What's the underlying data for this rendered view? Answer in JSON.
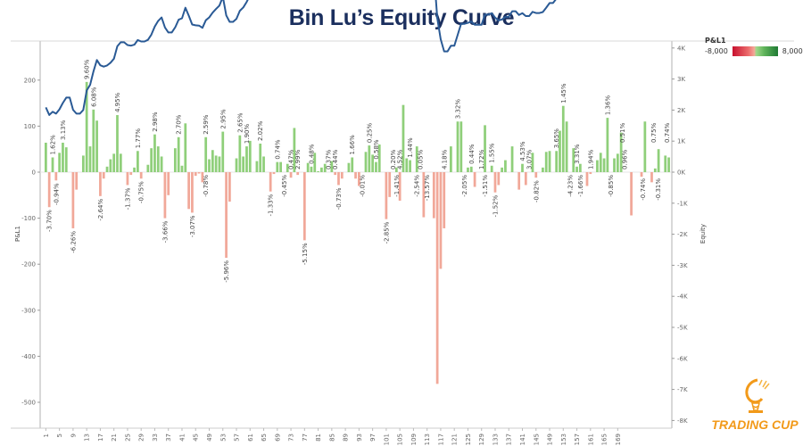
{
  "title": "Bin Lu’s Equity Curve",
  "legend": {
    "title": "P&L1",
    "min_label": "-8,000",
    "max_label": "8,000"
  },
  "logo": {
    "text": "TRADING CUP"
  },
  "colors": {
    "positive": "#8fcf7a",
    "negative": "#f1a899",
    "line": "#2a5a95",
    "title": "#1b2f5e",
    "axis": "#cccccc"
  },
  "chart_data": {
    "type": "bar+line",
    "title": "Bin Lu’s Equity Curve",
    "xlabel": "",
    "ylabel": "P&L1",
    "y2label": "Equity",
    "ylim": [
      -540,
      250
    ],
    "y2lim": [
      -8300,
      4300
    ],
    "yticks": [
      "200",
      "100",
      "0",
      "-100",
      "-200",
      "-300",
      "-400",
      "-500"
    ],
    "y2ticks": [
      "4K",
      "3K",
      "2K",
      "1K",
      "0K",
      "-1K",
      "-2K",
      "-3K",
      "-4K",
      "-5K",
      "-6K",
      "-7K",
      "-8K"
    ],
    "xticks": [
      "1",
      "5",
      "9",
      "13",
      "17",
      "21",
      "25",
      "29",
      "33",
      "37",
      "41",
      "45",
      "49",
      "53",
      "57",
      "61",
      "65",
      "69",
      "73",
      "77",
      "81",
      "85",
      "89",
      "93",
      "97",
      "101",
      "105",
      "109",
      "113",
      "117",
      "121",
      "125",
      "129",
      "133",
      "137",
      "141",
      "145",
      "149",
      "153",
      "157",
      "161",
      "165",
      "169"
    ],
    "equity_start": 1880,
    "pnl": [
      64,
      -76,
      32,
      -18,
      42,
      64,
      54,
      0,
      -122,
      -38,
      0,
      36,
      196,
      56,
      136,
      112,
      -52,
      -14,
      12,
      28,
      40,
      124,
      40,
      0,
      -28,
      -6,
      10,
      46,
      -14,
      0,
      16,
      52,
      82,
      56,
      34,
      -100,
      -50,
      0,
      52,
      76,
      14,
      106,
      -80,
      -88,
      -8,
      -3,
      -22,
      76,
      28,
      48,
      36,
      34,
      88,
      -186,
      -64,
      0,
      30,
      80,
      34,
      56,
      68,
      0,
      24,
      62,
      34,
      0,
      -42,
      -4,
      22,
      22,
      0,
      18,
      -12,
      96,
      -6,
      0,
      -148,
      20,
      12,
      42,
      2,
      10,
      18,
      0,
      24,
      -6,
      -28,
      -14,
      0,
      20,
      32,
      -14,
      -30,
      0,
      44,
      58,
      38,
      22,
      60,
      0,
      -102,
      -54,
      0,
      10,
      -62,
      146,
      30,
      26,
      0,
      56,
      0,
      -98,
      0,
      0,
      -100,
      -460,
      -210,
      -122,
      0,
      56,
      0,
      110,
      110,
      0,
      10,
      12,
      -32,
      0,
      0,
      102,
      0,
      14,
      -44,
      -28,
      10,
      26,
      0,
      56,
      0,
      -38,
      18,
      -28,
      0,
      42,
      -12,
      0,
      10,
      44,
      46,
      0,
      46,
      90,
      144,
      110,
      0,
      52,
      12,
      18,
      0,
      -30,
      -4,
      0,
      26,
      42,
      30,
      118,
      0,
      30,
      40,
      86,
      0,
      0,
      -94,
      0,
      0,
      -10,
      110,
      0,
      -22,
      8,
      50,
      0,
      36,
      32
    ],
    "labels": [
      {
        "i": 1,
        "text": "-3.70%"
      },
      {
        "i": 2,
        "text": "1.62%"
      },
      {
        "i": 3,
        "text": "-0.94%"
      },
      {
        "i": 5,
        "text": "3.13%"
      },
      {
        "i": 8,
        "text": "-6.26%"
      },
      {
        "i": 12,
        "text": "9.60%"
      },
      {
        "i": 14,
        "text": "6.08%"
      },
      {
        "i": 16,
        "text": "-2.64%"
      },
      {
        "i": 21,
        "text": "4.95%"
      },
      {
        "i": 24,
        "text": "-1.37%"
      },
      {
        "i": 27,
        "text": "1.77%"
      },
      {
        "i": 28,
        "text": "-0.75%"
      },
      {
        "i": 32,
        "text": "2.98%"
      },
      {
        "i": 35,
        "text": "-3.66%"
      },
      {
        "i": 39,
        "text": "2.70%"
      },
      {
        "i": 43,
        "text": "-3.07%"
      },
      {
        "i": 47,
        "text": "-0.78%"
      },
      {
        "i": 47,
        "text": "2.59%"
      },
      {
        "i": 52,
        "text": "2.95%"
      },
      {
        "i": 53,
        "text": "-5.96%"
      },
      {
        "i": 57,
        "text": "2.65%"
      },
      {
        "i": 59,
        "text": "1.90%"
      },
      {
        "i": 63,
        "text": "2.02%"
      },
      {
        "i": 66,
        "text": "-1.33%"
      },
      {
        "i": 68,
        "text": "0.74%"
      },
      {
        "i": 70,
        "text": "-0.45%"
      },
      {
        "i": 72,
        "text": "0.47%"
      },
      {
        "i": 74,
        "text": "2.99%"
      },
      {
        "i": 76,
        "text": "-5.15%"
      },
      {
        "i": 78,
        "text": "0.48%"
      },
      {
        "i": 83,
        "text": "0.37%"
      },
      {
        "i": 85,
        "text": "0.44%"
      },
      {
        "i": 86,
        "text": "-0.73%"
      },
      {
        "i": 90,
        "text": "1.66%"
      },
      {
        "i": 93,
        "text": "-0.01%"
      },
      {
        "i": 95,
        "text": "0.25%"
      },
      {
        "i": 97,
        "text": "0.58%"
      },
      {
        "i": 100,
        "text": "-2.85%"
      },
      {
        "i": 102,
        "text": "0.20%"
      },
      {
        "i": 103,
        "text": "-1.41%"
      },
      {
        "i": 104,
        "text": "4.52%"
      },
      {
        "i": 107,
        "text": "1.44%"
      },
      {
        "i": 109,
        "text": "-2.54%"
      },
      {
        "i": 110,
        "text": "0.05%"
      },
      {
        "i": 112,
        "text": "-13.57%"
      },
      {
        "i": 117,
        "text": "4.18%"
      },
      {
        "i": 121,
        "text": "3.32%"
      },
      {
        "i": 123,
        "text": "-2.05%"
      },
      {
        "i": 125,
        "text": "0.44%"
      },
      {
        "i": 128,
        "text": "1.72%"
      },
      {
        "i": 129,
        "text": "-1.51%"
      },
      {
        "i": 131,
        "text": "1.55%"
      },
      {
        "i": 132,
        "text": "-1.52%"
      },
      {
        "i": 140,
        "text": "4.53%"
      },
      {
        "i": 142,
        "text": "3.07%"
      },
      {
        "i": 144,
        "text": "-0.82%"
      },
      {
        "i": 150,
        "text": "3.65%"
      },
      {
        "i": 152,
        "text": "1.45%"
      },
      {
        "i": 154,
        "text": "-4.23%"
      },
      {
        "i": 156,
        "text": "3.31%"
      },
      {
        "i": 157,
        "text": "-1.66%"
      },
      {
        "i": 160,
        "text": "1.94%"
      },
      {
        "i": 165,
        "text": "1.36%"
      },
      {
        "i": 166,
        "text": "-0.85%"
      },
      {
        "i": 170,
        "text": "0.96%"
      }
    ],
    "tail_labels": [
      {
        "x": 700,
        "text": "0.51%",
        "pos": true
      },
      {
        "x": 723,
        "text": "-0.74%",
        "pos": false
      },
      {
        "x": 735,
        "text": "0.75%",
        "pos": true
      },
      {
        "x": 740,
        "text": "-0.31%",
        "pos": false
      },
      {
        "x": 750,
        "text": "0.74%",
        "pos": true
      }
    ],
    "grid": false,
    "legend_position": "top-right"
  }
}
